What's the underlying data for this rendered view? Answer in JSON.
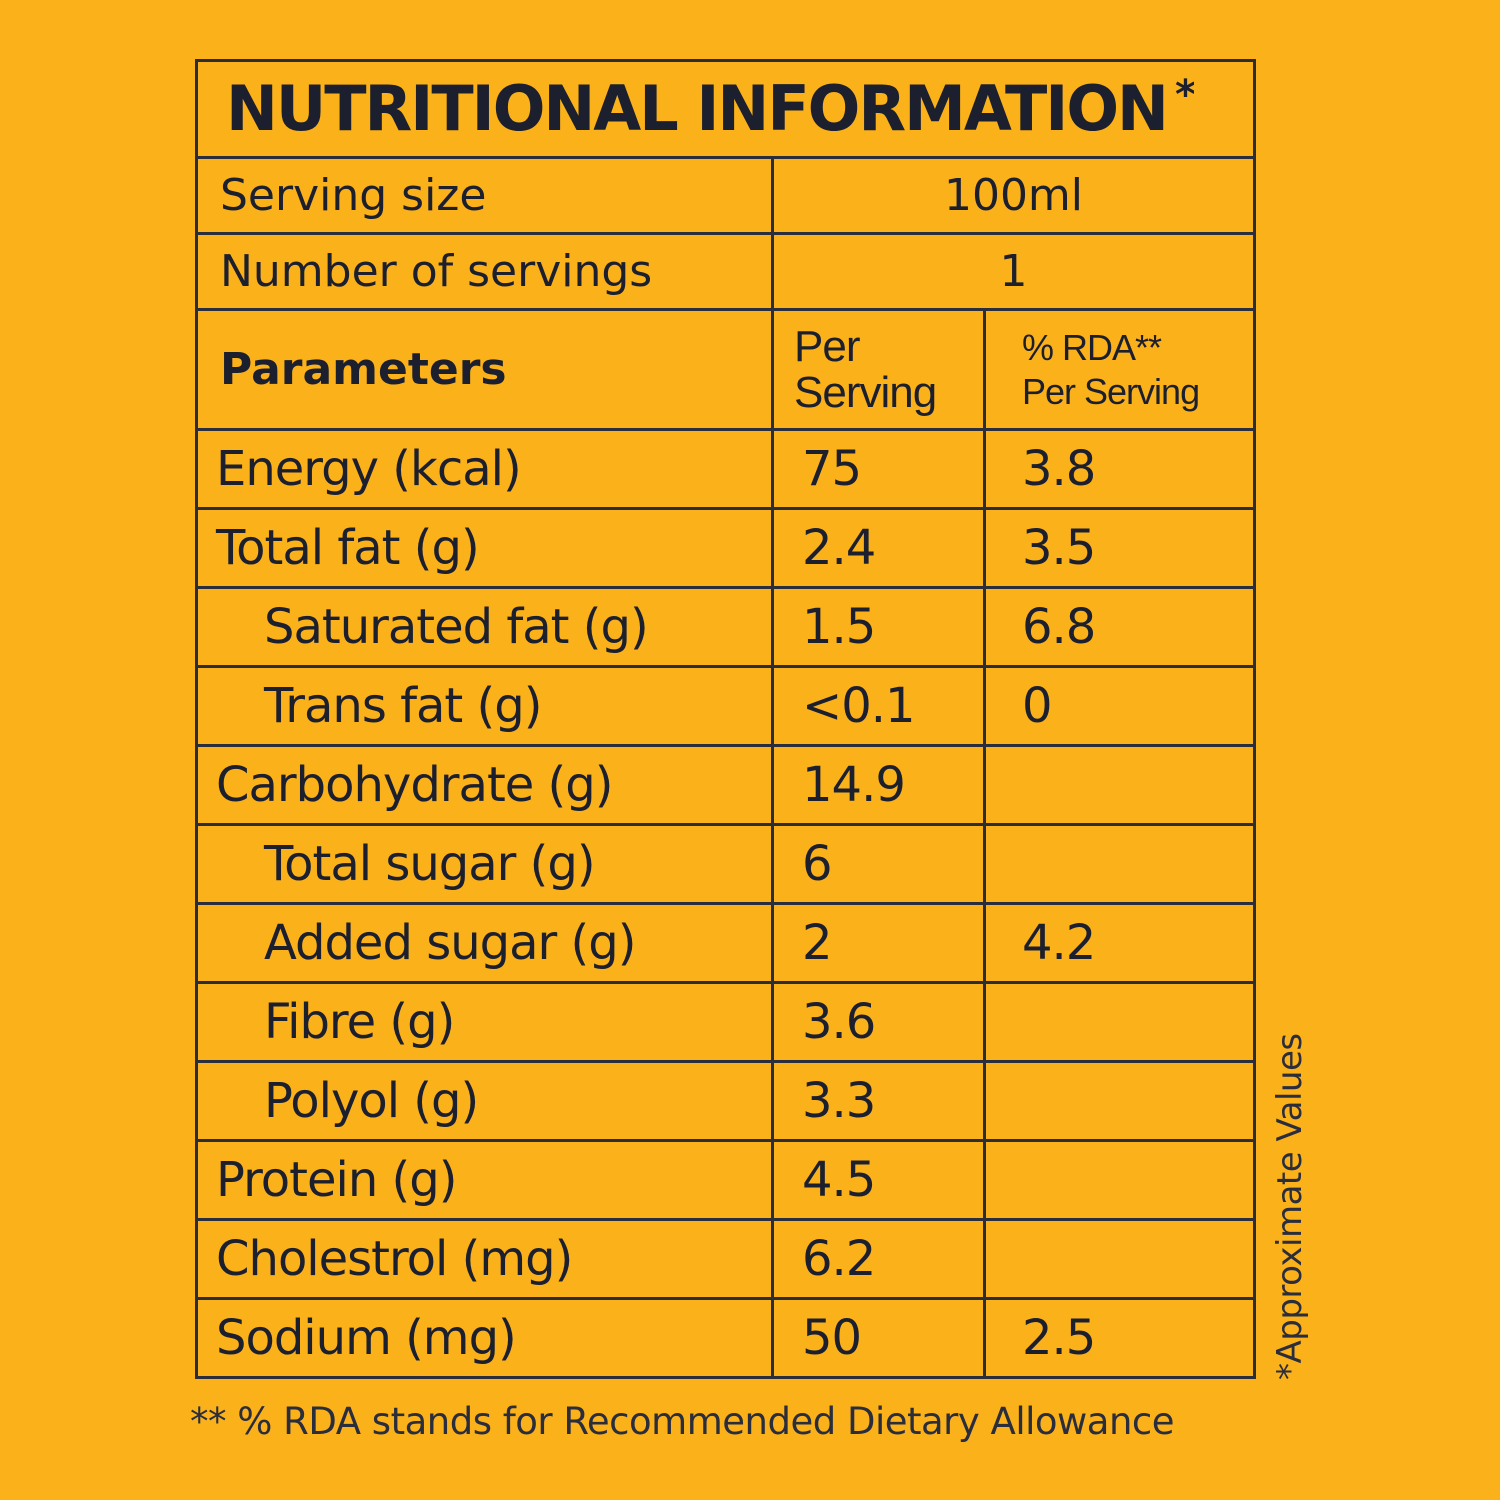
{
  "title": "NUTRITIONAL INFORMATION",
  "title_mark": "*",
  "serving": {
    "label": "Serving size",
    "value": "100ml"
  },
  "servings_count": {
    "label": "Number of servings",
    "value": "1"
  },
  "header": {
    "parameters": "Parameters",
    "per_line1": "Per",
    "per_line2": "Serving",
    "rda_line1": "% RDA**",
    "rda_line2": "Per Serving"
  },
  "rows": [
    {
      "name": "Energy (kcal)",
      "per": "75",
      "rda": "3.8",
      "indent": false
    },
    {
      "name": "Total fat (g)",
      "per": "2.4",
      "rda": "3.5",
      "indent": false
    },
    {
      "name": "Saturated fat (g)",
      "per": "1.5",
      "rda": "6.8",
      "indent": true
    },
    {
      "name": "Trans fat (g)",
      "per": "<0.1",
      "rda": "0",
      "indent": true
    },
    {
      "name": "Carbohydrate (g)",
      "per": "14.9",
      "rda": "",
      "indent": false
    },
    {
      "name": "Total sugar (g)",
      "per": "6",
      "rda": "",
      "indent": true
    },
    {
      "name": "Added sugar (g)",
      "per": "2",
      "rda": "4.2",
      "indent": true
    },
    {
      "name": "Fibre (g)",
      "per": "3.6",
      "rda": "",
      "indent": true
    },
    {
      "name": "Polyol (g)",
      "per": "3.3",
      "rda": "",
      "indent": true
    },
    {
      "name": "Protein (g)",
      "per": "4.5",
      "rda": "",
      "indent": false
    },
    {
      "name": "Cholestrol (mg)",
      "per": "6.2",
      "rda": "",
      "indent": false
    },
    {
      "name": "Sodium (mg)",
      "per": "50",
      "rda": "2.5",
      "indent": false
    }
  ],
  "side_note": "*Approximate Values",
  "footnote": "** % RDA stands for Recommended Dietary Allowance",
  "colors": {
    "background": "#FBB11A",
    "ink": "#2a2d3c"
  }
}
